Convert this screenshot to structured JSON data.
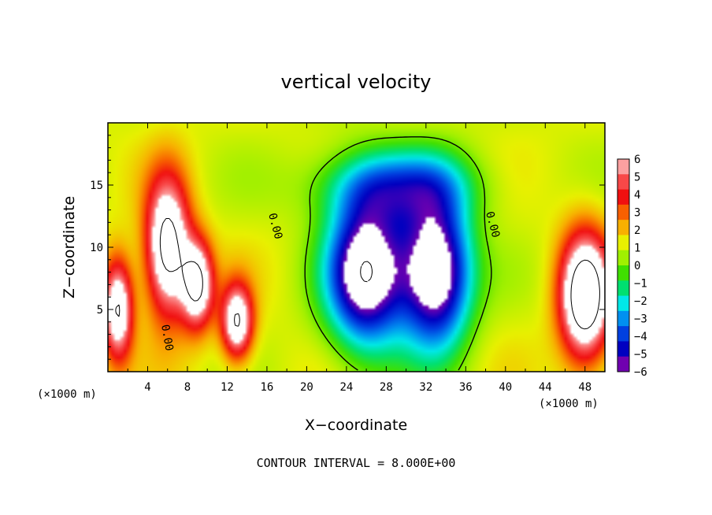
{
  "chart_data": {
    "type": "heatmap",
    "title": "vertical velocity",
    "xlabel": "X−coordinate",
    "ylabel": "Z−coordinate",
    "x_unit_label": "(×1000 m)",
    "x_unit_label_bottom": "(×1000 m)",
    "xlim": [
      0,
      50
    ],
    "ylim": [
      0,
      20
    ],
    "x_ticks": [
      "4",
      "8",
      "12",
      "16",
      "20",
      "24",
      "28",
      "32",
      "36",
      "40",
      "44",
      "48"
    ],
    "y_ticks": [
      "5",
      "10",
      "15"
    ],
    "colorbar": {
      "min": -6,
      "max": 6,
      "labels": [
        "6",
        "5",
        "4",
        "3",
        "2",
        "1",
        "0",
        "−1",
        "−2",
        "−3",
        "−4",
        "−5",
        "−6"
      ],
      "colors": [
        "#fca0a0",
        "#f84848",
        "#f01010",
        "#f86000",
        "#f8b000",
        "#e8f000",
        "#a0f000",
        "#40e000",
        "#00e070",
        "#00e8e8",
        "#0090f0",
        "#0040e0",
        "#0000c0",
        "#7000b0"
      ]
    },
    "contour_labels": [
      "0.00",
      "0.00",
      "0.00"
    ],
    "note": "CONTOUR INTERVAL = 8.000E+00",
    "field_features": [
      {
        "kind": "updraft",
        "x": 6,
        "z": 10,
        "sx": 2.2,
        "sz": 5.5,
        "peak": 8
      },
      {
        "kind": "updraft",
        "x": 9,
        "z": 7,
        "sx": 1.6,
        "sz": 3.5,
        "peak": 7
      },
      {
        "kind": "updraft",
        "x": 13,
        "z": 4,
        "sx": 1.6,
        "sz": 3,
        "peak": 7
      },
      {
        "kind": "updraft",
        "x": 1,
        "z": 5,
        "sx": 1.5,
        "sz": 4,
        "peak": 7
      },
      {
        "kind": "updraft",
        "x": 48,
        "z": 6,
        "sx": 2.5,
        "sz": 5,
        "peak": 9
      },
      {
        "kind": "downdraft",
        "x": 26,
        "z": 8,
        "sx": 4,
        "sz": 6,
        "peak": -9
      },
      {
        "kind": "downdraft",
        "x": 33,
        "z": 8,
        "sx": 3.5,
        "sz": 6,
        "peak": -9
      },
      {
        "kind": "downdraft",
        "x": 29,
        "z": 15,
        "sx": 8,
        "sz": 3,
        "peak": -4
      }
    ]
  }
}
